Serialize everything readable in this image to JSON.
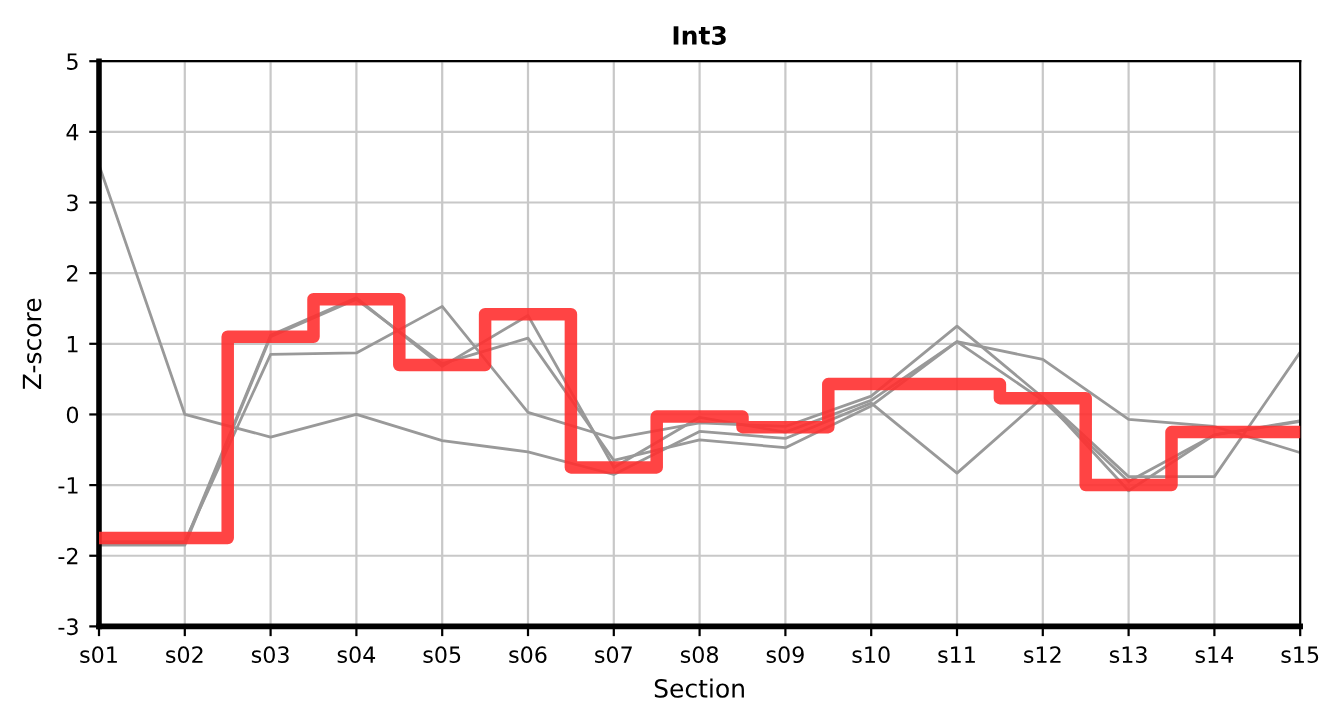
{
  "chart_data": {
    "type": "line",
    "title": "Int3",
    "xlabel": "Section",
    "ylabel": "Z-score",
    "categories": [
      "s01",
      "s02",
      "s03",
      "s04",
      "s05",
      "s06",
      "s07",
      "s08",
      "s09",
      "s10",
      "s11",
      "s12",
      "s13",
      "s14",
      "s15"
    ],
    "series": [
      {
        "color": "#999999",
        "values": [
          3.53,
          0.0,
          -0.32,
          0.0,
          -0.37,
          -0.53,
          -0.85,
          -0.24,
          -0.34,
          0.16,
          -0.83,
          0.24,
          -0.88,
          -0.88,
          0.88
        ]
      },
      {
        "color": "#999999",
        "values": [
          -1.8,
          -1.8,
          0.85,
          0.87,
          1.53,
          0.03,
          -0.34,
          -0.12,
          -0.17,
          0.26,
          1.25,
          0.24,
          -1.08,
          -0.29,
          -0.09
        ]
      },
      {
        "color": "#999999",
        "values": [
          -1.82,
          -1.82,
          1.12,
          1.65,
          0.68,
          1.4,
          -0.75,
          -0.04,
          -0.25,
          0.2,
          1.03,
          0.78,
          -0.07,
          -0.17,
          -0.54
        ]
      },
      {
        "color": "#999999",
        "values": [
          -1.85,
          -1.85,
          1.1,
          1.63,
          0.72,
          1.08,
          -0.65,
          -0.36,
          -0.47,
          0.12,
          1.03,
          0.2,
          -0.95,
          -0.29,
          -0.1
        ]
      },
      {
        "type": "step",
        "color": "#ff3030",
        "values": [
          -1.75,
          -1.75,
          1.1,
          1.63,
          0.7,
          1.42,
          -0.75,
          -0.03,
          -0.18,
          0.43,
          0.43,
          0.23,
          -1.0,
          -0.25,
          -0.25
        ]
      }
    ],
    "ylim": [
      -3,
      5
    ],
    "yticks": [
      -3,
      -2,
      -1,
      0,
      1,
      2,
      3,
      4,
      5
    ],
    "grid": true,
    "legend": false,
    "marker": "none",
    "line_style": "solid"
  }
}
